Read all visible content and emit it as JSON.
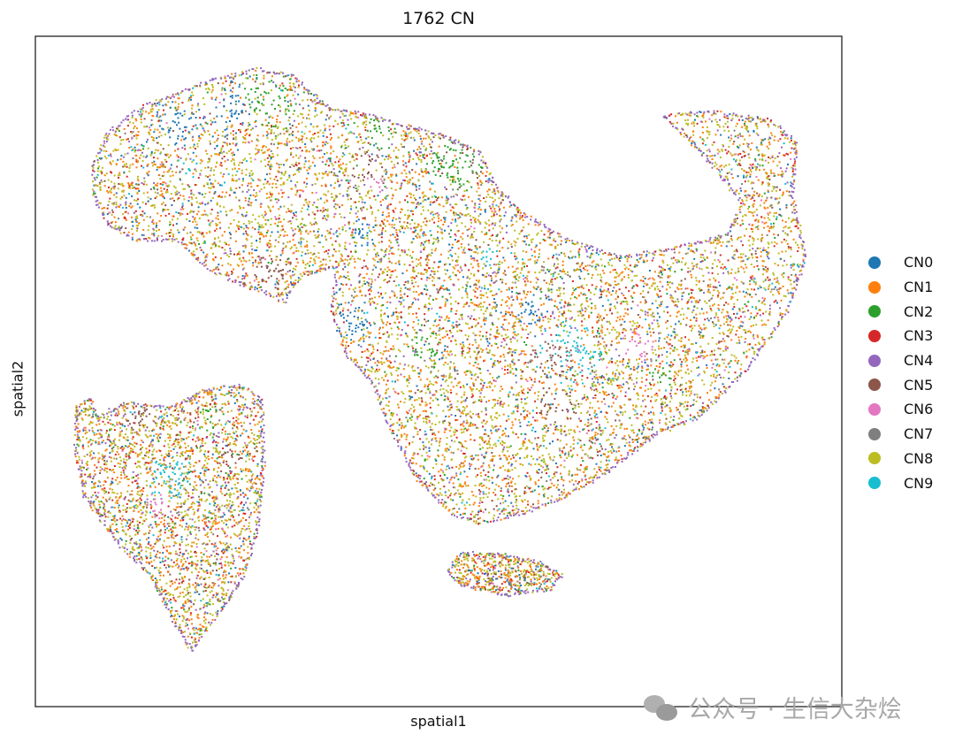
{
  "chart_data": {
    "type": "scatter",
    "title": "1762 CN",
    "xlabel": "spatial1",
    "ylabel": "spatial2",
    "grid": false,
    "ticks": false,
    "legend_placement": "right",
    "categories": [
      "CN0",
      "CN1",
      "CN2",
      "CN3",
      "CN4",
      "CN5",
      "CN6",
      "CN7",
      "CN8",
      "CN9"
    ],
    "colors": [
      "#1f77b4",
      "#ff7f0e",
      "#2ca02c",
      "#d62728",
      "#9467bd",
      "#8c564b",
      "#e377c2",
      "#7f7f7f",
      "#bcbd22",
      "#17becf"
    ]
  },
  "watermark": "公众号 · 生信大杂烩"
}
